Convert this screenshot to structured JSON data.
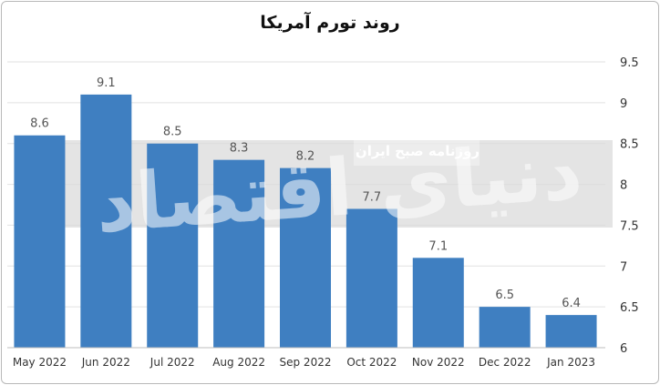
{
  "chart_data": {
    "type": "bar",
    "title": "روند تورم آمریکا",
    "categories": [
      "May 2022",
      "Jun 2022",
      "Jul 2022",
      "Aug 2022",
      "Sep 2022",
      "Oct 2022",
      "Nov 2022",
      "Dec 2022",
      "Jan 2023"
    ],
    "values": [
      8.6,
      9.1,
      8.5,
      8.3,
      8.2,
      7.7,
      7.1,
      6.5,
      6.4
    ],
    "value_labels": [
      "8.6",
      "9.1",
      "8.5",
      "8.3",
      "8.2",
      "7.7",
      "7.1",
      "6.5",
      "6.4"
    ],
    "ylim": [
      6,
      9.5
    ],
    "yticks": [
      6,
      6.5,
      7,
      7.5,
      8,
      8.5,
      9,
      9.5
    ],
    "ytick_labels": [
      "6",
      "6.5",
      "7",
      "7.5",
      "8",
      "8.5",
      "9",
      "9.5"
    ],
    "y_axis_position": "right",
    "grid": true,
    "bar_color": "#3f7fc1",
    "grid_color": "#e2e2e2"
  },
  "watermark": {
    "logo_text": "دنیای اقتصاد",
    "caption": "روزنامه صبح ایران"
  }
}
